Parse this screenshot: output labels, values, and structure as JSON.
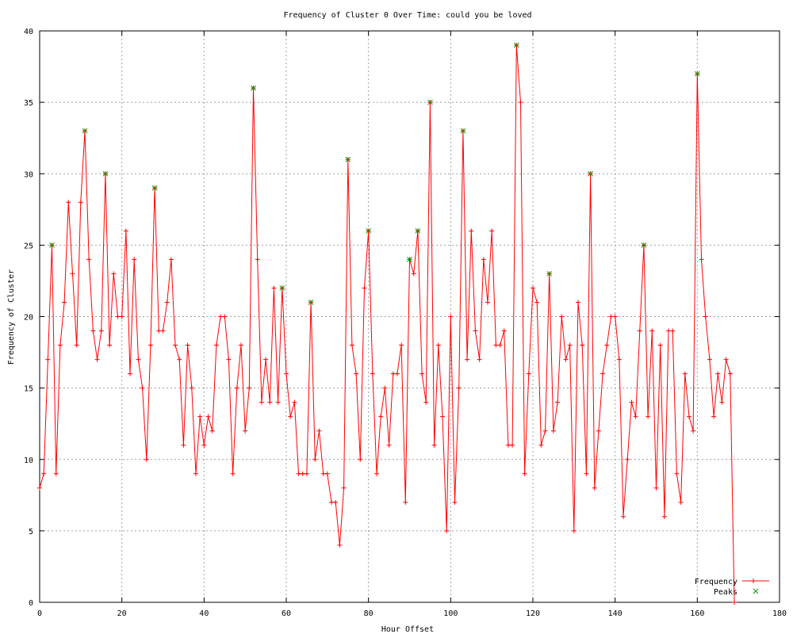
{
  "chart_data": {
    "type": "line",
    "title": "Frequency of Cluster 0 Over Time: could you be loved",
    "xlabel": "Hour Offset",
    "ylabel": "Frequency of Cluster",
    "xlim": [
      0,
      180
    ],
    "ylim": [
      0,
      40
    ],
    "xticks": [
      0,
      20,
      40,
      60,
      80,
      100,
      120,
      140,
      160,
      180
    ],
    "yticks": [
      0,
      5,
      10,
      15,
      20,
      25,
      30,
      35,
      40
    ],
    "grid": true,
    "legend_position": "bottom-right",
    "series": [
      {
        "name": "Frequency",
        "color": "#ff0000",
        "marker": "+",
        "x": [
          0,
          1,
          2,
          3,
          4,
          5,
          6,
          7,
          8,
          9,
          10,
          11,
          12,
          13,
          14,
          15,
          16,
          17,
          18,
          19,
          20,
          21,
          22,
          23,
          24,
          25,
          26,
          27,
          28,
          29,
          30,
          31,
          32,
          33,
          34,
          35,
          36,
          37,
          38,
          39,
          40,
          41,
          42,
          43,
          44,
          45,
          46,
          47,
          48,
          49,
          50,
          51,
          52,
          53,
          54,
          55,
          56,
          57,
          58,
          59,
          60,
          61,
          62,
          63,
          64,
          65,
          66,
          67,
          68,
          69,
          70,
          71,
          72,
          73,
          74,
          75,
          76,
          77,
          78,
          79,
          80,
          81,
          82,
          83,
          84,
          85,
          86,
          87,
          88,
          89,
          90,
          91,
          92,
          93,
          94,
          95,
          96,
          97,
          98,
          99,
          100,
          101,
          102,
          103,
          104,
          105,
          106,
          107,
          108,
          109,
          110,
          111,
          112,
          113,
          114,
          115,
          116,
          117,
          118,
          119,
          120,
          121,
          122,
          123,
          124,
          125,
          126,
          127,
          128,
          129,
          130,
          131,
          132,
          133,
          134,
          135,
          136,
          137,
          138,
          139,
          140,
          141,
          142,
          143,
          144,
          145,
          146,
          147,
          148,
          149,
          150,
          151,
          152,
          153,
          154,
          155,
          156,
          157,
          158,
          159,
          160,
          161,
          162,
          163,
          164,
          165,
          166,
          167,
          168,
          169
        ],
        "y": [
          8,
          9,
          17,
          25,
          9,
          18,
          21,
          28,
          23,
          18,
          28,
          33,
          24,
          19,
          17,
          19,
          30,
          18,
          23,
          20,
          20,
          26,
          16,
          24,
          17,
          15,
          10,
          18,
          29,
          19,
          19,
          21,
          24,
          18,
          17,
          11,
          18,
          15,
          9,
          13,
          11,
          13,
          12,
          18,
          20,
          20,
          17,
          9,
          15,
          18,
          12,
          15,
          36,
          24,
          14,
          17,
          14,
          22,
          14,
          22,
          16,
          13,
          14,
          9,
          9,
          9,
          21,
          10,
          12,
          9,
          9,
          7,
          7,
          4,
          8,
          31,
          18,
          16,
          10,
          22,
          26,
          16,
          9,
          13,
          15,
          11,
          16,
          16,
          18,
          7,
          24,
          23,
          26,
          16,
          14,
          35,
          11,
          18,
          13,
          5,
          20,
          7,
          15,
          33,
          17,
          26,
          19,
          17,
          24,
          21,
          26,
          18,
          18,
          19,
          11,
          11,
          39,
          35,
          9,
          16,
          22,
          21,
          11,
          12,
          23,
          12,
          14,
          20,
          17,
          18,
          5,
          21,
          18,
          9,
          30,
          8,
          12,
          16,
          18,
          20,
          20,
          17,
          6,
          10,
          14,
          13,
          19,
          25,
          13,
          19,
          8,
          18,
          6,
          19,
          19,
          9,
          7,
          16,
          13,
          12,
          37,
          24,
          20,
          17,
          13,
          16,
          14,
          17,
          16,
          0
        ]
      },
      {
        "name": "Peaks",
        "color": "#00a000",
        "marker": "x",
        "x": [
          3,
          11,
          16,
          28,
          52,
          59,
          66,
          75,
          80,
          90,
          92,
          95,
          103,
          116,
          124,
          134,
          147,
          160
        ],
        "y": [
          25,
          33,
          30,
          29,
          36,
          22,
          21,
          31,
          26,
          24,
          26,
          35,
          33,
          39,
          23,
          30,
          25,
          37
        ]
      }
    ]
  }
}
